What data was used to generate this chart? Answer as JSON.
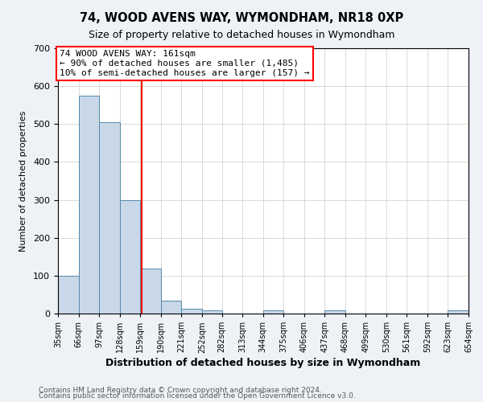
{
  "title": "74, WOOD AVENS WAY, WYMONDHAM, NR18 0XP",
  "subtitle": "Size of property relative to detached houses in Wymondham",
  "xlabel": "Distribution of detached houses by size in Wymondham",
  "ylabel": "Number of detached properties",
  "footnote1": "Contains HM Land Registry data © Crown copyright and database right 2024.",
  "footnote2": "Contains public sector information licensed under the Open Government Licence v3.0.",
  "bin_edges": [
    35,
    66,
    97,
    128,
    159,
    190,
    221,
    252,
    282,
    313,
    344,
    375,
    406,
    437,
    468,
    499,
    530,
    561,
    592,
    623,
    654
  ],
  "bin_labels": [
    "35sqm",
    "66sqm",
    "97sqm",
    "128sqm",
    "159sqm",
    "190sqm",
    "221sqm",
    "252sqm",
    "282sqm",
    "313sqm",
    "344sqm",
    "375sqm",
    "406sqm",
    "437sqm",
    "468sqm",
    "499sqm",
    "530sqm",
    "561sqm",
    "592sqm",
    "623sqm",
    "654sqm"
  ],
  "bar_heights": [
    100,
    575,
    505,
    300,
    118,
    35,
    13,
    8,
    0,
    0,
    8,
    0,
    0,
    8,
    0,
    0,
    0,
    0,
    0,
    8
  ],
  "bar_color": "#c8d8e8",
  "bar_edge_color": "#5588aa",
  "vline_x": 161,
  "vline_color": "red",
  "annotation_title": "74 WOOD AVENS WAY: 161sqm",
  "annotation_line1": "← 90% of detached houses are smaller (1,485)",
  "annotation_line2": "10% of semi-detached houses are larger (157) →",
  "annotation_box_color": "white",
  "annotation_box_edge": "red",
  "ylim": [
    0,
    700
  ],
  "yticks": [
    0,
    100,
    200,
    300,
    400,
    500,
    600,
    700
  ],
  "background_color": "#eef2f7",
  "plot_background": "white",
  "grid_color": "#cccccc"
}
